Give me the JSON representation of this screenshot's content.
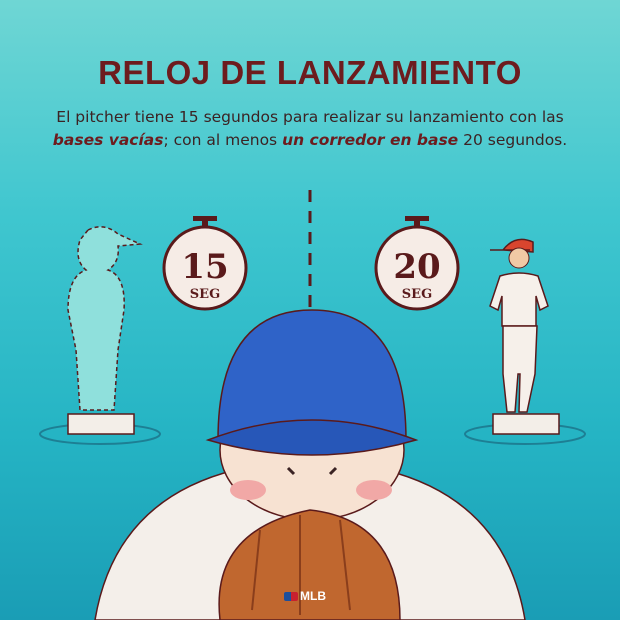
{
  "title": "RELOJ DE LANZAMIENTO",
  "description": {
    "part1": "El pitcher tiene 15 segundos para realizar su lanzamiento con las ",
    "em1": "bases vacías",
    "part2": "; con al menos ",
    "em2": "un corredor en base",
    "part3": " 20 segundos."
  },
  "timers": [
    {
      "value": "15",
      "unit": "SEG"
    },
    {
      "value": "20",
      "unit": "SEG"
    }
  ],
  "logo": "MLB",
  "colors": {
    "accent": "#6d1c1e",
    "background": "#3fc6cf",
    "cap": "#2f63c8",
    "glove": "#c0672f"
  }
}
